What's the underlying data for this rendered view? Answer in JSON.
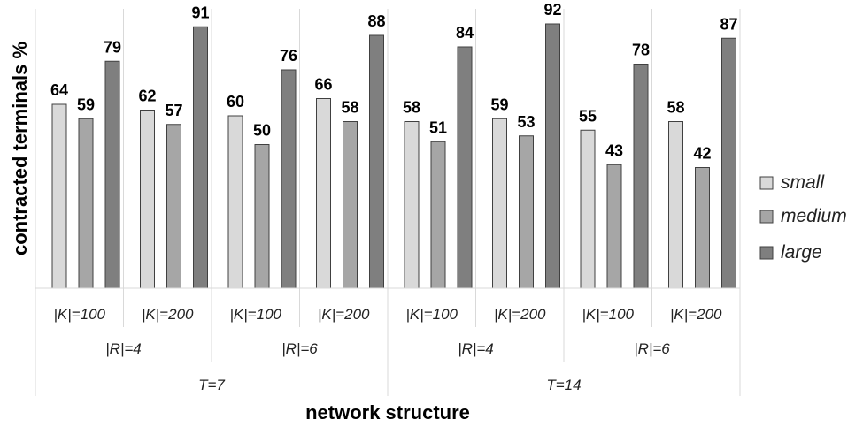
{
  "chart_data": {
    "type": "bar",
    "ylabel": "contracted terminals %",
    "xlabel": "network structure",
    "ylim": [
      0,
      100
    ],
    "grid": false,
    "legend_position": "right",
    "level1_labels": [
      "|K|=100",
      "|K|=200",
      "|K|=100",
      "|K|=200",
      "|K|=100",
      "|K|=200",
      "|K|=100",
      "|K|=200"
    ],
    "level2_labels": [
      "|R|=4",
      "|R|=6",
      "|R|=4",
      "|R|=6"
    ],
    "level3_labels": [
      "T=7",
      "T=14"
    ],
    "series": [
      {
        "name": "small",
        "color": "#d9d9d9",
        "values": [
          64,
          62,
          60,
          66,
          58,
          59,
          55,
          58
        ]
      },
      {
        "name": "medium",
        "color": "#a6a6a6",
        "values": [
          59,
          57,
          50,
          58,
          51,
          53,
          43,
          42
        ]
      },
      {
        "name": "large",
        "color": "#7f7f7f",
        "values": [
          79,
          91,
          76,
          88,
          84,
          92,
          78,
          87
        ]
      }
    ]
  }
}
